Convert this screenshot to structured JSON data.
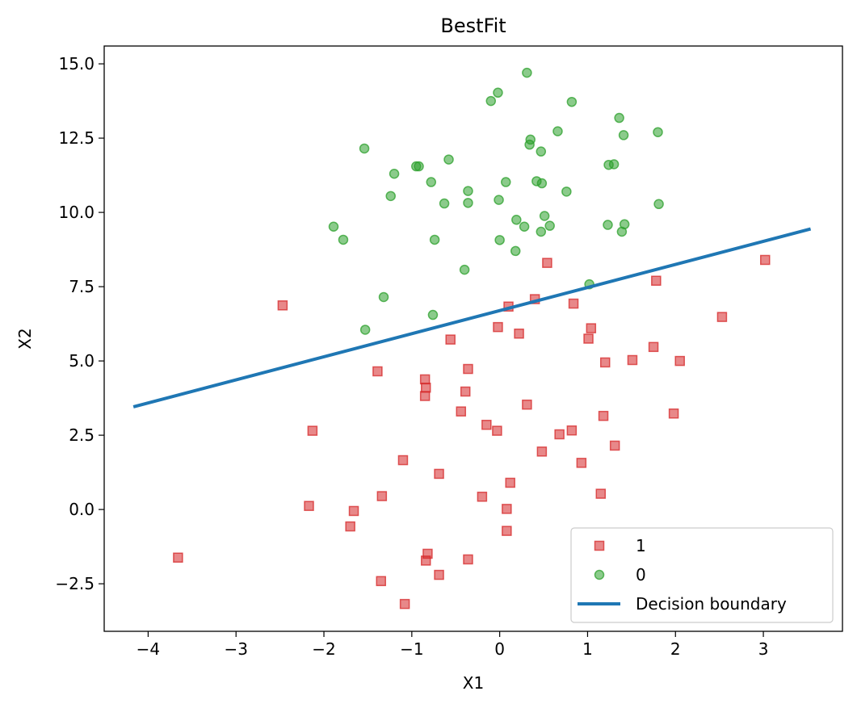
{
  "chart_data": {
    "type": "scatter",
    "title": "BestFit",
    "xlabel": "X1",
    "ylabel": "X2",
    "xlim": [
      -4.5,
      3.9
    ],
    "ylim": [
      -4.1,
      15.6
    ],
    "xticks": [
      -4,
      -3,
      -2,
      -1,
      0,
      1,
      2,
      3
    ],
    "yticks": [
      -2.5,
      0.0,
      2.5,
      5.0,
      7.5,
      10.0,
      12.5,
      15.0
    ],
    "xtick_labels": [
      "−4",
      "−3",
      "−2",
      "−1",
      "0",
      "1",
      "2",
      "3"
    ],
    "ytick_labels": [
      "−2.5",
      "0.0",
      "2.5",
      "5.0",
      "7.5",
      "10.0",
      "12.5",
      "15.0"
    ],
    "grid": false,
    "legend_position": "bottom-right",
    "series": [
      {
        "name": "1",
        "marker": "square",
        "color": "#d62728",
        "points": [
          [
            3.02,
            8.4
          ],
          [
            1.78,
            7.7
          ],
          [
            0.54,
            8.3
          ],
          [
            -2.47,
            6.87
          ],
          [
            0.1,
            6.83
          ],
          [
            0.4,
            7.08
          ],
          [
            0.84,
            6.93
          ],
          [
            1.04,
            6.1
          ],
          [
            1.01,
            5.75
          ],
          [
            -0.56,
            5.72
          ],
          [
            -0.02,
            6.14
          ],
          [
            0.22,
            5.92
          ],
          [
            2.53,
            6.48
          ],
          [
            1.75,
            5.47
          ],
          [
            1.51,
            5.03
          ],
          [
            2.05,
            5.0
          ],
          [
            1.2,
            4.95
          ],
          [
            -1.39,
            4.65
          ],
          [
            -0.36,
            4.73
          ],
          [
            -0.85,
            4.38
          ],
          [
            -0.84,
            4.1
          ],
          [
            -0.85,
            3.82
          ],
          [
            -0.39,
            3.97
          ],
          [
            -0.44,
            3.3
          ],
          [
            0.31,
            3.53
          ],
          [
            1.18,
            3.15
          ],
          [
            1.98,
            3.23
          ],
          [
            -0.15,
            2.85
          ],
          [
            -0.03,
            2.65
          ],
          [
            0.68,
            2.53
          ],
          [
            0.82,
            2.66
          ],
          [
            -2.13,
            2.65
          ],
          [
            1.31,
            2.15
          ],
          [
            0.48,
            1.95
          ],
          [
            -1.1,
            1.66
          ],
          [
            0.93,
            1.57
          ],
          [
            -0.69,
            1.2
          ],
          [
            0.12,
            0.9
          ],
          [
            -1.34,
            0.45
          ],
          [
            -0.2,
            0.43
          ],
          [
            1.15,
            0.53
          ],
          [
            -2.17,
            0.12
          ],
          [
            -1.66,
            -0.05
          ],
          [
            0.08,
            0.02
          ],
          [
            -1.7,
            -0.57
          ],
          [
            0.08,
            -0.72
          ],
          [
            -3.66,
            -1.62
          ],
          [
            -0.82,
            -1.49
          ],
          [
            -0.84,
            -1.72
          ],
          [
            -0.36,
            -1.68
          ],
          [
            -0.69,
            -2.2
          ],
          [
            -1.35,
            -2.41
          ],
          [
            -1.08,
            -3.18
          ]
        ]
      },
      {
        "name": "0",
        "marker": "circle",
        "color": "#2ca02c",
        "points": [
          [
            0.31,
            14.7
          ],
          [
            -0.02,
            14.03
          ],
          [
            -0.1,
            13.75
          ],
          [
            0.82,
            13.72
          ],
          [
            1.36,
            13.18
          ],
          [
            0.66,
            12.73
          ],
          [
            1.8,
            12.7
          ],
          [
            1.41,
            12.6
          ],
          [
            0.35,
            12.45
          ],
          [
            0.34,
            12.28
          ],
          [
            -1.54,
            12.15
          ],
          [
            0.47,
            12.05
          ],
          [
            -0.58,
            11.78
          ],
          [
            1.24,
            11.6
          ],
          [
            1.3,
            11.62
          ],
          [
            -0.95,
            11.55
          ],
          [
            -0.92,
            11.55
          ],
          [
            -1.2,
            11.3
          ],
          [
            -0.78,
            11.02
          ],
          [
            0.07,
            11.02
          ],
          [
            0.42,
            11.05
          ],
          [
            0.48,
            10.98
          ],
          [
            -0.36,
            10.72
          ],
          [
            -1.24,
            10.55
          ],
          [
            0.76,
            10.7
          ],
          [
            -0.01,
            10.42
          ],
          [
            -0.63,
            10.3
          ],
          [
            -0.36,
            10.32
          ],
          [
            1.81,
            10.28
          ],
          [
            0.51,
            9.88
          ],
          [
            0.19,
            9.75
          ],
          [
            0.28,
            9.52
          ],
          [
            0.57,
            9.55
          ],
          [
            1.23,
            9.58
          ],
          [
            1.42,
            9.6
          ],
          [
            0.47,
            9.35
          ],
          [
            1.39,
            9.35
          ],
          [
            -1.89,
            9.52
          ],
          [
            -1.78,
            9.08
          ],
          [
            -0.74,
            9.08
          ],
          [
            0.0,
            9.07
          ],
          [
            0.18,
            8.7
          ],
          [
            -0.4,
            8.07
          ],
          [
            1.02,
            7.58
          ],
          [
            -1.32,
            7.15
          ],
          [
            -0.76,
            6.55
          ],
          [
            -1.53,
            6.05
          ]
        ]
      },
      {
        "name": "Decision boundary",
        "type": "line",
        "color": "#1f77b4",
        "points": [
          [
            -4.15,
            3.47
          ],
          [
            3.52,
            9.43
          ]
        ]
      }
    ]
  }
}
